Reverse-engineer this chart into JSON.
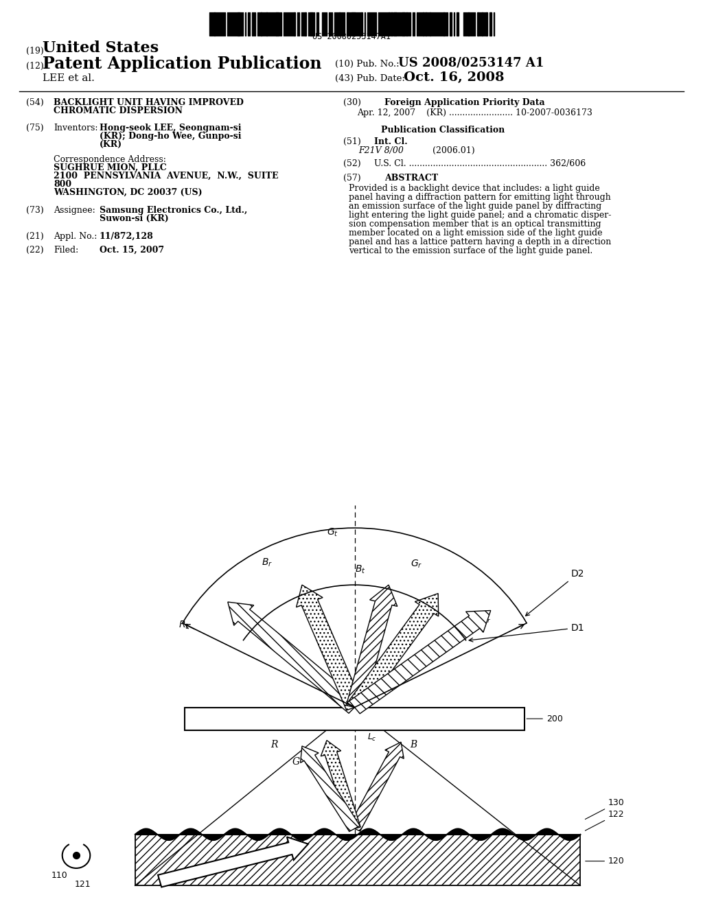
{
  "bg_color": "#ffffff",
  "barcode_text": "US 20080253147A1",
  "title_19": "United States",
  "title_12": "Patent Application Publication",
  "pub_no_label": "(10) Pub. No.:",
  "pub_no": "US 2008/0253147 A1",
  "author": "LEE et al.",
  "pub_date_label": "(43) Pub. Date:",
  "pub_date": "Oct. 16, 2008",
  "abstract_text": "Provided is a backlight device that includes: a light guide panel having a diffraction pattern for emitting light through an emission surface of the light guide panel by diffracting light entering the light guide panel; and a chromatic dispersion compensation member that is an optical transmitting member located on a light emission side of the light guide panel and has a lattice pattern having a depth in a direction vertical to the emission surface of the light guide panel."
}
